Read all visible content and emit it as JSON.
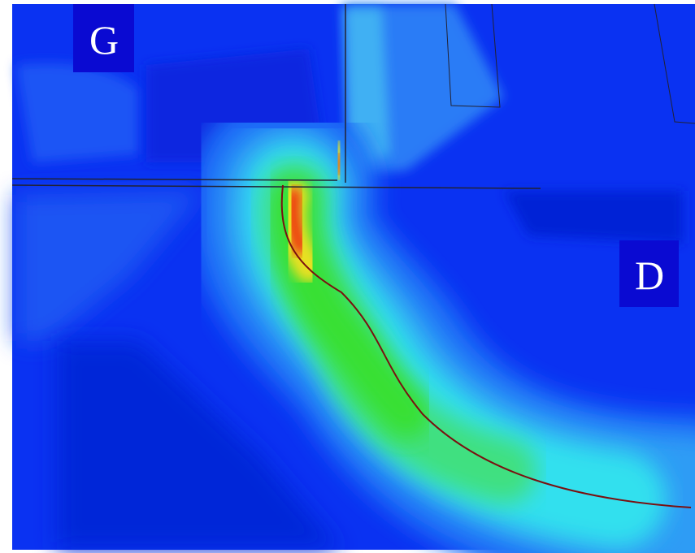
{
  "labels": {
    "gate": "G",
    "drain": "D"
  }
}
